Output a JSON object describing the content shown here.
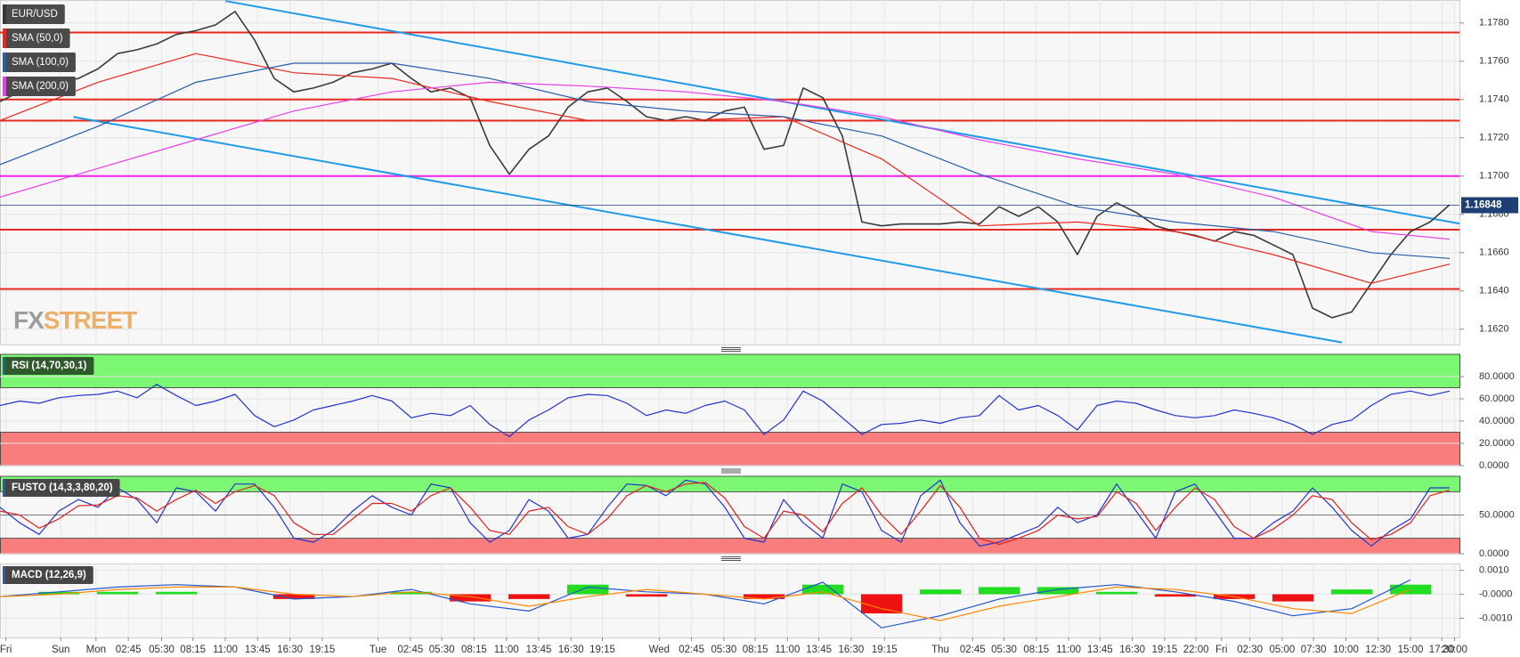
{
  "chart_data": [
    {
      "type": "line",
      "xlim": [
        0,
        74.5
      ],
      "ylim": [
        1.1612,
        1.1792
      ],
      "yticks": [
        {
          "value": 1.162,
          "label": "1.1620"
        },
        {
          "value": 1.164,
          "label": "1.1640"
        },
        {
          "value": 1.166,
          "label": "1.1660"
        },
        {
          "value": 1.168,
          "label": "1.1680"
        },
        {
          "value": 1.17,
          "label": "1.1700"
        },
        {
          "value": 1.172,
          "label": "1.1720"
        },
        {
          "value": 1.174,
          "label": "1.1740"
        },
        {
          "value": 1.176,
          "label": "1.1760"
        },
        {
          "value": 1.178,
          "label": "1.1780"
        }
      ],
      "series": [
        {
          "name": "EUR/USD",
          "color": "#3a3a3a",
          "values": [
            1.1739,
            1.1744,
            1.1746,
            1.1749,
            1.1751,
            1.1756,
            1.1764,
            1.1766,
            1.1769,
            1.1774,
            1.1776,
            1.1779,
            1.1786,
            1.1771,
            1.1751,
            1.1744,
            1.1746,
            1.1749,
            1.1754,
            1.1756,
            1.1759,
            1.1751,
            1.1744,
            1.1746,
            1.1741,
            1.1716,
            1.1701,
            1.1714,
            1.1721,
            1.1736,
            1.1744,
            1.1746,
            1.1739,
            1.1731,
            1.1729,
            1.1731,
            1.1729,
            1.1734,
            1.1736,
            1.1714,
            1.1716,
            1.1746,
            1.1741,
            1.1721,
            1.1676,
            1.1674,
            1.1675,
            1.1675,
            1.1675,
            1.1676,
            1.1675,
            1.1684,
            1.1679,
            1.1684,
            1.1676,
            1.1659,
            1.1679,
            1.1686,
            1.1681,
            1.1674,
            1.1671,
            1.1669,
            1.1666,
            1.1671,
            1.1669,
            1.1664,
            1.1659,
            1.1631,
            1.1626,
            1.1629,
            1.1644,
            1.1659,
            1.1671,
            1.1676,
            1.1685
          ]
        },
        {
          "name": "SMA (50,0)",
          "color": "#e8281e",
          "x": [
            0,
            5,
            10,
            15,
            20,
            25,
            30,
            35,
            40,
            45,
            50,
            55,
            60,
            65,
            70,
            74
          ],
          "values": [
            1.1729,
            1.1749,
            1.1764,
            1.1754,
            1.1751,
            1.1739,
            1.1729,
            1.1729,
            1.1731,
            1.1709,
            1.1674,
            1.1676,
            1.1671,
            1.1659,
            1.1644,
            1.1654
          ]
        },
        {
          "name": "SMA (100,0)",
          "color": "#2a5ca8",
          "x": [
            0,
            5,
            10,
            15,
            20,
            25,
            30,
            35,
            40,
            45,
            50,
            55,
            60,
            65,
            70,
            74
          ],
          "values": [
            1.1706,
            1.1726,
            1.1749,
            1.1759,
            1.1759,
            1.1751,
            1.1739,
            1.1734,
            1.1731,
            1.1721,
            1.1701,
            1.1684,
            1.1676,
            1.1671,
            1.166,
            1.1657
          ]
        },
        {
          "name": "SMA (200,0)",
          "color": "#e640e6",
          "x": [
            0,
            5,
            10,
            15,
            20,
            25,
            30,
            35,
            40,
            45,
            50,
            55,
            60,
            65,
            70,
            74
          ],
          "values": [
            1.1689,
            1.1704,
            1.1719,
            1.1734,
            1.1744,
            1.1749,
            1.1747,
            1.1744,
            1.1739,
            1.1731,
            1.1719,
            1.1709,
            1.1701,
            1.1689,
            1.1671,
            1.1667
          ]
        }
      ],
      "hlines": [
        {
          "value": 1.1775,
          "color": "#e8281e"
        },
        {
          "value": 1.174,
          "color": "#e8281e"
        },
        {
          "value": 1.1729,
          "color": "#e8281e"
        },
        {
          "value": 1.17,
          "color": "#ee22ee"
        },
        {
          "value": 1.1672,
          "color": "#e8281e"
        },
        {
          "value": 1.1641,
          "color": "#e8281e"
        }
      ],
      "trendlines": [
        {
          "x": [
            11.5,
            74.5
          ],
          "y": [
            1.17915,
            1.16752
          ],
          "color": "#1e9be9"
        },
        {
          "x": [
            3.75,
            68.5
          ],
          "y": [
            1.17309,
            1.16131
          ],
          "color": "#1e9be9"
        }
      ],
      "last_price": 1.16848,
      "watermark": {
        "gray": "FX",
        "orange": "STREET"
      }
    },
    {
      "type": "line",
      "title": "RSI (14,70,30,1)",
      "xlim": [
        0,
        74.5
      ],
      "ylim": [
        0,
        100
      ],
      "yticks": [
        {
          "value": 0,
          "label": "0.0000"
        },
        {
          "value": 20,
          "label": "20.0000"
        },
        {
          "value": 40,
          "label": "40.0000"
        },
        {
          "value": 60,
          "label": "60.0000"
        },
        {
          "value": 80,
          "label": "80.0000"
        }
      ],
      "zones": [
        {
          "from": 70,
          "to": 100,
          "color": "#7cf774"
        },
        {
          "from": 0,
          "to": 30,
          "color": "#f97d7d"
        }
      ],
      "series": [
        {
          "color": "#2233cc",
          "values": [
            54,
            58,
            56,
            61,
            63,
            64,
            67,
            61,
            73,
            63,
            54,
            58,
            64,
            45,
            35,
            41,
            50,
            54,
            58,
            63,
            58,
            43,
            47,
            45,
            54,
            37,
            26,
            41,
            50,
            61,
            64,
            63,
            56,
            45,
            50,
            47,
            54,
            58,
            50,
            28,
            41,
            67,
            58,
            43,
            28,
            37,
            38,
            41,
            38,
            43,
            45,
            63,
            50,
            54,
            45,
            32,
            54,
            58,
            56,
            50,
            45,
            43,
            45,
            50,
            47,
            43,
            37,
            28,
            37,
            41,
            54,
            64,
            67,
            63,
            67
          ]
        }
      ]
    },
    {
      "type": "line",
      "title": "FUSTO (14,3,3,80,20)",
      "xlim": [
        0,
        74.5
      ],
      "ylim": [
        0,
        100
      ],
      "yticks": [
        {
          "value": 0,
          "label": "0.0000"
        },
        {
          "value": 50,
          "label": "50.0000"
        }
      ],
      "zones": [
        {
          "from": 80,
          "to": 100,
          "color": "#7cf774"
        },
        {
          "from": 0,
          "to": 20,
          "color": "#f97d7d"
        }
      ],
      "hlines": [
        {
          "value": 50,
          "color": "#555555"
        }
      ],
      "series": [
        {
          "color": "#2233cc",
          "values": [
            60,
            40,
            25,
            55,
            70,
            60,
            85,
            70,
            40,
            85,
            80,
            55,
            90,
            90,
            60,
            20,
            15,
            30,
            55,
            75,
            60,
            50,
            90,
            85,
            40,
            15,
            30,
            70,
            55,
            20,
            25,
            60,
            90,
            88,
            75,
            95,
            90,
            60,
            20,
            15,
            70,
            40,
            20,
            90,
            80,
            30,
            15,
            75,
            95,
            40,
            10,
            15,
            25,
            35,
            60,
            40,
            50,
            90,
            55,
            20,
            80,
            90,
            55,
            20,
            20,
            40,
            55,
            85,
            60,
            30,
            10,
            30,
            45,
            85,
            85
          ]
        },
        {
          "color": "#e02020",
          "values": [
            55,
            50,
            33,
            45,
            62,
            63,
            75,
            72,
            55,
            70,
            82,
            65,
            80,
            88,
            75,
            40,
            25,
            25,
            45,
            65,
            65,
            55,
            75,
            85,
            60,
            30,
            25,
            55,
            60,
            35,
            25,
            45,
            75,
            88,
            80,
            90,
            92,
            72,
            35,
            20,
            55,
            50,
            28,
            65,
            85,
            50,
            25,
            55,
            88,
            60,
            20,
            12,
            20,
            30,
            50,
            45,
            48,
            80,
            65,
            30,
            60,
            85,
            70,
            35,
            20,
            32,
            50,
            75,
            70,
            40,
            18,
            25,
            40,
            75,
            82
          ]
        }
      ]
    },
    {
      "type": "line",
      "title": "MACD (12,26,9)",
      "xlim": [
        0,
        74.5
      ],
      "ylim": [
        -0.0018,
        0.00128
      ],
      "yticks": [
        {
          "value": -0.001,
          "label": "-0.0010"
        },
        {
          "value": 0,
          "label": "-0.0000"
        },
        {
          "value": 0.001,
          "label": "0.0010"
        }
      ],
      "xticks": [
        {
          "value": 0.3,
          "label": "Fri"
        },
        {
          "value": 3.1,
          "label": "Sun"
        },
        {
          "value": 4.9,
          "label": "Mon"
        },
        {
          "value": 6.55,
          "label": "02:45"
        },
        {
          "value": 8.25,
          "label": "05:30"
        },
        {
          "value": 9.85,
          "label": "08:15"
        },
        {
          "value": 11.5,
          "label": "11:00"
        },
        {
          "value": 13.15,
          "label": "13:45"
        },
        {
          "value": 14.8,
          "label": "16:30"
        },
        {
          "value": 16.45,
          "label": "19:15"
        },
        {
          "value": 19.3,
          "label": "Tue"
        },
        {
          "value": 20.95,
          "label": "02:45"
        },
        {
          "value": 22.55,
          "label": "05:30"
        },
        {
          "value": 24.2,
          "label": "08:15"
        },
        {
          "value": 25.85,
          "label": "11:00"
        },
        {
          "value": 27.5,
          "label": "13:45"
        },
        {
          "value": 29.15,
          "label": "16:30"
        },
        {
          "value": 30.75,
          "label": "19:15"
        },
        {
          "value": 33.65,
          "label": "Wed"
        },
        {
          "value": 35.3,
          "label": "02:45"
        },
        {
          "value": 36.95,
          "label": "05:30"
        },
        {
          "value": 38.55,
          "label": "08:15"
        },
        {
          "value": 40.2,
          "label": "11:00"
        },
        {
          "value": 41.8,
          "label": "13:45"
        },
        {
          "value": 43.45,
          "label": "16:30"
        },
        {
          "value": 45.15,
          "label": "19:15"
        },
        {
          "value": 48,
          "label": "Thu"
        },
        {
          "value": 49.65,
          "label": "02:45"
        },
        {
          "value": 51.25,
          "label": "05:30"
        },
        {
          "value": 52.9,
          "label": "08:15"
        },
        {
          "value": 54.55,
          "label": "11:00"
        },
        {
          "value": 56.15,
          "label": "13:45"
        },
        {
          "value": 57.8,
          "label": "16:30"
        },
        {
          "value": 59.45,
          "label": "19:15"
        },
        {
          "value": 61.05,
          "label": "22:00"
        },
        {
          "value": 62.35,
          "label": "Fri"
        },
        {
          "value": 63.8,
          "label": "02:30"
        },
        {
          "value": 65.45,
          "label": "05:00"
        },
        {
          "value": 67.05,
          "label": "07:30"
        },
        {
          "value": 68.7,
          "label": "10:00"
        },
        {
          "value": 70.35,
          "label": "12:30"
        },
        {
          "value": 72,
          "label": "15:00"
        },
        {
          "value": 73.6,
          "label": "17:30"
        },
        {
          "value": 74.25,
          "label": "20:00"
        }
      ],
      "series": [
        {
          "type": "bar",
          "color": "#22dd22",
          "neg_color": "#ee1111",
          "x": [
            0,
            3,
            6,
            9,
            12,
            15,
            18,
            21,
            24,
            27,
            30,
            33,
            36,
            39,
            42,
            45,
            48,
            51,
            54,
            57,
            60,
            63,
            66,
            69,
            72
          ],
          "values": [
            0,
            0.0001,
            0.0001,
            0.0001,
            0,
            -0.0002,
            0,
            0.0001,
            -0.0003,
            -0.0002,
            0.0004,
            -0.0001,
            0,
            -0.0002,
            0.0004,
            -0.0008,
            0.0002,
            0.0003,
            0.0003,
            0.0001,
            -0.0001,
            -0.0002,
            -0.0003,
            0.0002,
            0.0004
          ]
        },
        {
          "color": "#2255cc",
          "x": [
            0,
            3,
            6,
            9,
            12,
            15,
            18,
            21,
            24,
            27,
            30,
            33,
            36,
            39,
            42,
            45,
            48,
            51,
            54,
            57,
            60,
            63,
            66,
            69,
            72
          ],
          "values": [
            -0.0001,
            0.0001,
            0.0003,
            0.0004,
            0.0003,
            -0.0002,
            -0.0001,
            0.0002,
            -0.0004,
            -0.0007,
            0.0003,
            0.0001,
            0,
            -0.0004,
            0.0005,
            -0.0014,
            -0.0009,
            -0.0002,
            0.0002,
            0.0004,
            0.0001,
            -0.0003,
            -0.0009,
            -0.0006,
            0.0006
          ]
        },
        {
          "color": "#ff8800",
          "x": [
            0,
            3,
            6,
            9,
            12,
            15,
            18,
            21,
            24,
            27,
            30,
            33,
            36,
            39,
            42,
            45,
            48,
            51,
            54,
            57,
            60,
            63,
            66,
            69,
            72
          ],
          "values": [
            -0.0001,
            0,
            0.0002,
            0.0003,
            0.0003,
            0,
            -0.0001,
            0.0001,
            -0.0001,
            -0.0005,
            -0.0001,
            0.0002,
            0,
            -0.0002,
            0.0001,
            -0.0006,
            -0.0011,
            -0.0005,
            -0.0001,
            0.0003,
            0.0002,
            -0.0001,
            -0.0006,
            -0.0008,
            0.0002
          ]
        }
      ]
    }
  ]
}
